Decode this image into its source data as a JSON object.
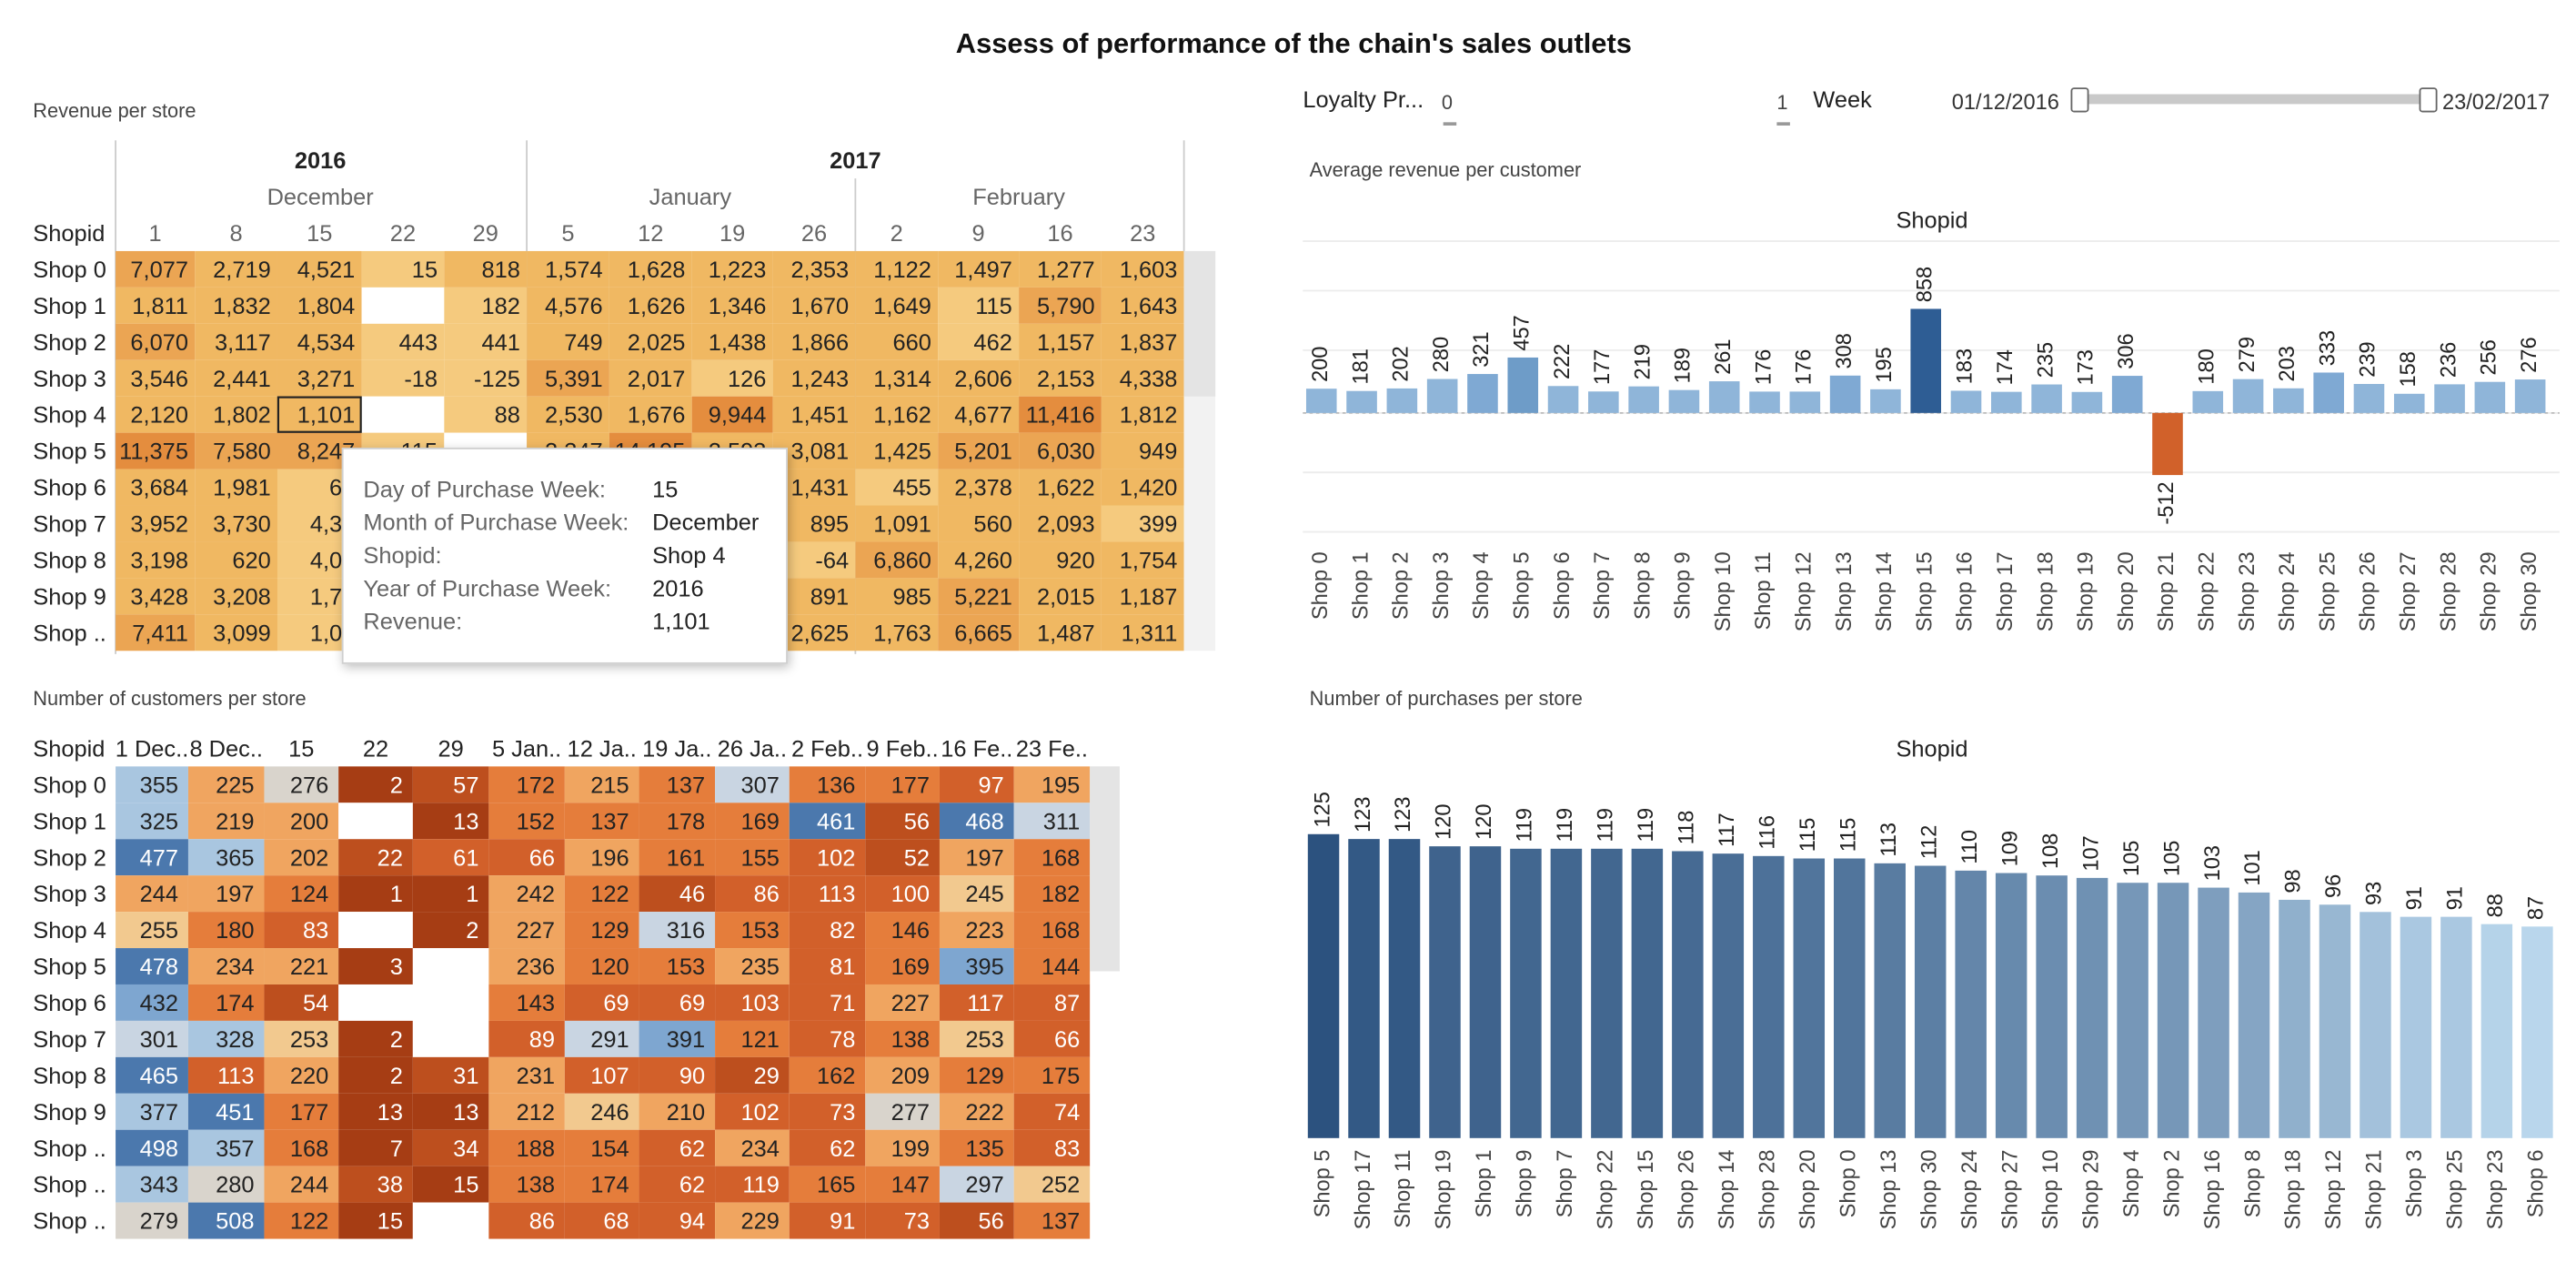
{
  "title": "Assess of performance of the chain's sales outlets",
  "filters": {
    "loyalty_label": "Loyalty Pr...",
    "loyalty_min": "0",
    "loyalty_max": "1",
    "week_label": "Week",
    "week_start": "01/12/2016",
    "week_end": "23/02/2017"
  },
  "revenue": {
    "title": "Revenue per store",
    "row_header": "Shopid",
    "years": [
      "2016",
      "2017"
    ],
    "months": [
      "December",
      "January",
      "February"
    ],
    "days": [
      "1",
      "8",
      "15",
      "22",
      "29",
      "5",
      "12",
      "19",
      "26",
      "2",
      "9",
      "16",
      "23"
    ],
    "rows": [
      {
        "shop": "Shop 0",
        "cells": [
          "7,077",
          "2,719",
          "4,521",
          "15",
          "818",
          "1,574",
          "1,628",
          "1,223",
          "2,353",
          "1,122",
          "1,497",
          "1,277",
          "1,603"
        ]
      },
      {
        "shop": "Shop 1",
        "cells": [
          "1,811",
          "1,832",
          "1,804",
          "",
          "182",
          "4,576",
          "1,626",
          "1,346",
          "1,670",
          "1,649",
          "115",
          "5,790",
          "1,643"
        ]
      },
      {
        "shop": "Shop 2",
        "cells": [
          "6,070",
          "3,117",
          "4,534",
          "443",
          "441",
          "749",
          "2,025",
          "1,438",
          "1,866",
          "660",
          "462",
          "1,157",
          "1,837"
        ]
      },
      {
        "shop": "Shop 3",
        "cells": [
          "3,546",
          "2,441",
          "3,271",
          "-18",
          "-125",
          "5,391",
          "2,017",
          "126",
          "1,243",
          "1,314",
          "2,606",
          "2,153",
          "4,338"
        ]
      },
      {
        "shop": "Shop 4",
        "cells": [
          "2,120",
          "1,802",
          "1,101",
          "",
          "88",
          "2,530",
          "1,676",
          "9,944",
          "1,451",
          "1,162",
          "4,677",
          "11,416",
          "1,812"
        ]
      },
      {
        "shop": "Shop 5",
        "cells": [
          "11,375",
          "7,580",
          "8,247",
          "115",
          "",
          "2,347",
          "14,195",
          "2,593",
          "3,081",
          "1,425",
          "5,201",
          "6,030",
          "949"
        ]
      },
      {
        "shop": "Shop 6",
        "cells": [
          "3,684",
          "1,981",
          "65",
          "",
          "",
          "",
          "",
          "",
          "1,431",
          "455",
          "2,378",
          "1,622",
          "1,420"
        ]
      },
      {
        "shop": "Shop 7",
        "cells": [
          "3,952",
          "3,730",
          "4,34",
          "",
          "",
          "",
          "",
          "",
          "895",
          "1,091",
          "560",
          "2,093",
          "399"
        ]
      },
      {
        "shop": "Shop 8",
        "cells": [
          "3,198",
          "620",
          "4,01",
          "",
          "",
          "",
          "",
          "",
          "-64",
          "6,860",
          "4,260",
          "920",
          "1,754"
        ]
      },
      {
        "shop": "Shop 9",
        "cells": [
          "3,428",
          "3,208",
          "1,72",
          "",
          "",
          "",
          "",
          "",
          "891",
          "985",
          "5,221",
          "2,015",
          "1,187"
        ]
      },
      {
        "shop": "Shop ..",
        "cells": [
          "7,411",
          "3,099",
          "1,03",
          "",
          "",
          "",
          "",
          "",
          "2,625",
          "1,763",
          "6,665",
          "1,487",
          "1,311"
        ]
      }
    ]
  },
  "tooltip": {
    "rows": [
      {
        "k": "Day of Purchase Week:",
        "v": "15"
      },
      {
        "k": "Month of Purchase Week:",
        "v": "December"
      },
      {
        "k": "Shopid:",
        "v": "Shop 4"
      },
      {
        "k": "Year of Purchase Week:",
        "v": "2016"
      },
      {
        "k": "Revenue:",
        "v": "1,101"
      }
    ]
  },
  "customers": {
    "title": "Number of customers per store",
    "row_header": "Shopid",
    "columns": [
      "1 Dec..",
      "8 Dec..",
      "15",
      "22",
      "29",
      "5 Jan..",
      "12 Ja..",
      "19 Ja..",
      "26 Ja..",
      "2 Feb..",
      "9 Feb..",
      "16 Fe..",
      "23 Fe.."
    ],
    "rows": [
      {
        "shop": "Shop 0",
        "cells": [
          "355",
          "225",
          "276",
          "2",
          "57",
          "172",
          "215",
          "137",
          "307",
          "136",
          "177",
          "97",
          "195"
        ]
      },
      {
        "shop": "Shop 1",
        "cells": [
          "325",
          "219",
          "200",
          "",
          "13",
          "152",
          "137",
          "178",
          "169",
          "461",
          "56",
          "468",
          "311"
        ]
      },
      {
        "shop": "Shop 2",
        "cells": [
          "477",
          "365",
          "202",
          "22",
          "61",
          "66",
          "196",
          "161",
          "155",
          "102",
          "52",
          "197",
          "168"
        ]
      },
      {
        "shop": "Shop 3",
        "cells": [
          "244",
          "197",
          "124",
          "1",
          "1",
          "242",
          "122",
          "46",
          "86",
          "113",
          "100",
          "245",
          "182"
        ]
      },
      {
        "shop": "Shop 4",
        "cells": [
          "255",
          "180",
          "83",
          "",
          "2",
          "227",
          "129",
          "316",
          "153",
          "82",
          "146",
          "223",
          "168"
        ]
      },
      {
        "shop": "Shop 5",
        "cells": [
          "478",
          "234",
          "221",
          "3",
          "",
          "236",
          "120",
          "153",
          "235",
          "81",
          "169",
          "395",
          "144"
        ]
      },
      {
        "shop": "Shop 6",
        "cells": [
          "432",
          "174",
          "54",
          "",
          "",
          "143",
          "69",
          "69",
          "103",
          "71",
          "227",
          "117",
          "87"
        ]
      },
      {
        "shop": "Shop 7",
        "cells": [
          "301",
          "328",
          "253",
          "2",
          "",
          "89",
          "291",
          "391",
          "121",
          "78",
          "138",
          "253",
          "66"
        ]
      },
      {
        "shop": "Shop 8",
        "cells": [
          "465",
          "113",
          "220",
          "2",
          "31",
          "231",
          "107",
          "90",
          "29",
          "162",
          "209",
          "129",
          "175"
        ]
      },
      {
        "shop": "Shop 9",
        "cells": [
          "377",
          "451",
          "177",
          "13",
          "13",
          "212",
          "246",
          "210",
          "102",
          "73",
          "277",
          "222",
          "74"
        ]
      },
      {
        "shop": "Shop ..",
        "cells": [
          "498",
          "357",
          "168",
          "7",
          "34",
          "188",
          "154",
          "62",
          "234",
          "62",
          "199",
          "135",
          "83"
        ]
      },
      {
        "shop": "Shop ..",
        "cells": [
          "343",
          "280",
          "244",
          "38",
          "15",
          "138",
          "174",
          "62",
          "119",
          "165",
          "147",
          "297",
          "252"
        ]
      },
      {
        "shop": "Shop ..",
        "cells": [
          "279",
          "508",
          "122",
          "15",
          "",
          "86",
          "68",
          "94",
          "229",
          "91",
          "73",
          "56",
          "137"
        ]
      }
    ]
  },
  "avg_revenue": {
    "title": "Average revenue per customer",
    "header": "Shopid",
    "colors": {
      "positive": "#8fb5d9",
      "highlight": "#2e5d94",
      "negative": "#d1612a",
      "mid": "#6e9cc8"
    }
  },
  "purchases": {
    "title": "Number of purchases per store",
    "header": "Shopid",
    "colors": {
      "dark": "#2c527f",
      "light": "#b9d6ec"
    }
  },
  "chart_data": [
    {
      "type": "bar",
      "title": "Average revenue per customer",
      "xlabel": "Shopid",
      "categories": [
        "Shop 0",
        "Shop 1",
        "Shop 2",
        "Shop 3",
        "Shop 4",
        "Shop 5",
        "Shop 6",
        "Shop 7",
        "Shop 8",
        "Shop 9",
        "Shop 10",
        "Shop 11",
        "Shop 12",
        "Shop 13",
        "Shop 14",
        "Shop 15",
        "Shop 16",
        "Shop 17",
        "Shop 18",
        "Shop 19",
        "Shop 20",
        "Shop 21",
        "Shop 22",
        "Shop 23",
        "Shop 24",
        "Shop 25",
        "Shop 26",
        "Shop 27",
        "Shop 28",
        "Shop 29",
        "Shop 30"
      ],
      "values": [
        200,
        181,
        202,
        280,
        321,
        457,
        222,
        177,
        219,
        189,
        261,
        176,
        176,
        308,
        195,
        858,
        183,
        174,
        235,
        173,
        306,
        -512,
        180,
        279,
        203,
        333,
        239,
        158,
        236,
        256,
        276
      ]
    },
    {
      "type": "bar",
      "title": "Number of purchases per store",
      "xlabel": "Shopid",
      "categories": [
        "Shop 5",
        "Shop 17",
        "Shop 11",
        "Shop 19",
        "Shop 1",
        "Shop 9",
        "Shop 7",
        "Shop 22",
        "Shop 15",
        "Shop 26",
        "Shop 14",
        "Shop 28",
        "Shop 20",
        "Shop 0",
        "Shop 13",
        "Shop 30",
        "Shop 24",
        "Shop 27",
        "Shop 10",
        "Shop 29",
        "Shop 4",
        "Shop 2",
        "Shop 16",
        "Shop 8",
        "Shop 18",
        "Shop 12",
        "Shop 21",
        "Shop 3",
        "Shop 25",
        "Shop 23",
        "Shop 6"
      ],
      "values": [
        125,
        123,
        123,
        120,
        120,
        119,
        119,
        119,
        119,
        118,
        117,
        116,
        115,
        115,
        113,
        112,
        110,
        109,
        108,
        107,
        105,
        105,
        103,
        101,
        98,
        96,
        93,
        91,
        91,
        88,
        87
      ]
    }
  ]
}
